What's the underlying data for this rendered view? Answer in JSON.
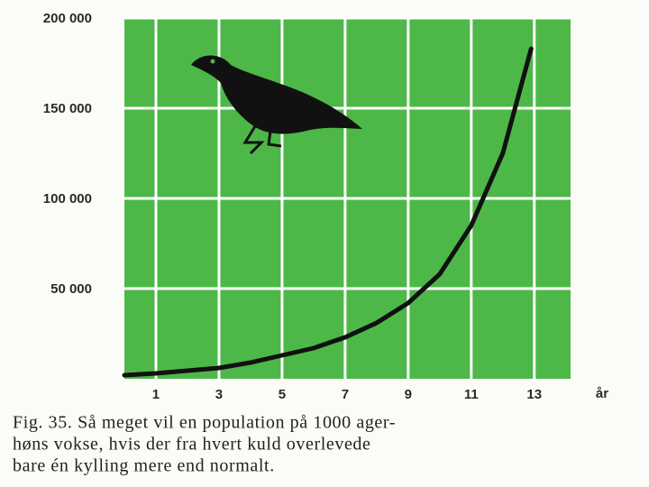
{
  "chart_data": {
    "type": "line",
    "x": [
      0,
      1,
      2,
      3,
      4,
      5,
      6,
      7,
      8,
      9,
      10,
      11,
      12,
      12.9
    ],
    "values": [
      2000,
      3000,
      4500,
      6000,
      9000,
      13000,
      17000,
      23000,
      31000,
      42000,
      58000,
      85000,
      125000,
      183000
    ],
    "color": "#111111",
    "background": "#4db848",
    "grid": true,
    "xlim": [
      0,
      14.15
    ],
    "ylim": [
      0,
      200000
    ],
    "xticks": [
      1,
      3,
      5,
      7,
      9,
      11,
      13
    ],
    "yticks": [
      {
        "value": 50000,
        "label": "50 000"
      },
      {
        "value": 100000,
        "label": "100 000"
      },
      {
        "value": 150000,
        "label": "150 000"
      },
      {
        "value": 200000,
        "label": "200 000"
      }
    ],
    "xlabel": "år",
    "caption": [
      "Fig. 35. Så meget vil en population på 1000 ager-",
      "høns vokse, hvis der fra hvert kuld overlevede",
      "bare én kylling mere end normalt."
    ]
  }
}
